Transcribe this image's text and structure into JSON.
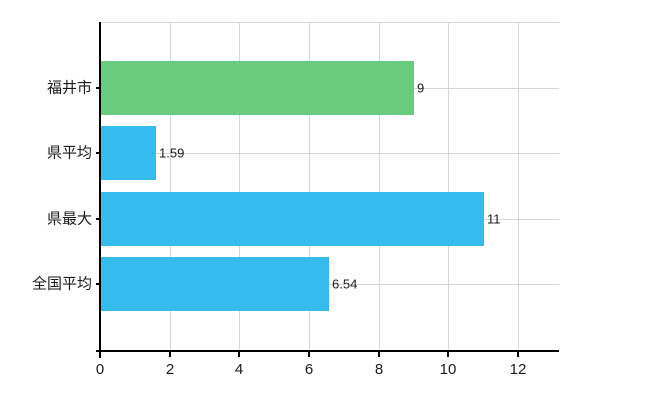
{
  "chart_data": {
    "type": "bar",
    "orientation": "horizontal",
    "title": "",
    "categories": [
      "福井市",
      "県平均",
      "県最大",
      "全国平均"
    ],
    "values": [
      9,
      1.59,
      11,
      6.54
    ],
    "value_labels": [
      "9",
      "1.59",
      "11",
      "6.54"
    ],
    "bar_colors": [
      "#68CB7D",
      "#35BBED",
      "#35BBED",
      "#35BBED"
    ],
    "x_tick_labels": [
      "0",
      "2",
      "4",
      "6",
      "8",
      "10",
      "12"
    ],
    "x_tick_values": [
      0,
      2,
      4,
      6,
      8,
      10,
      12
    ],
    "xlim": [
      0,
      13.18
    ],
    "grid": true,
    "legend_position": "none",
    "colors": {
      "background": "#ffffff",
      "axis": "#000000",
      "grid": "#d6d6d6",
      "text": "#1a1a1a",
      "green_bar": "#68CB7D",
      "blue_bar": "#35BBED"
    }
  }
}
